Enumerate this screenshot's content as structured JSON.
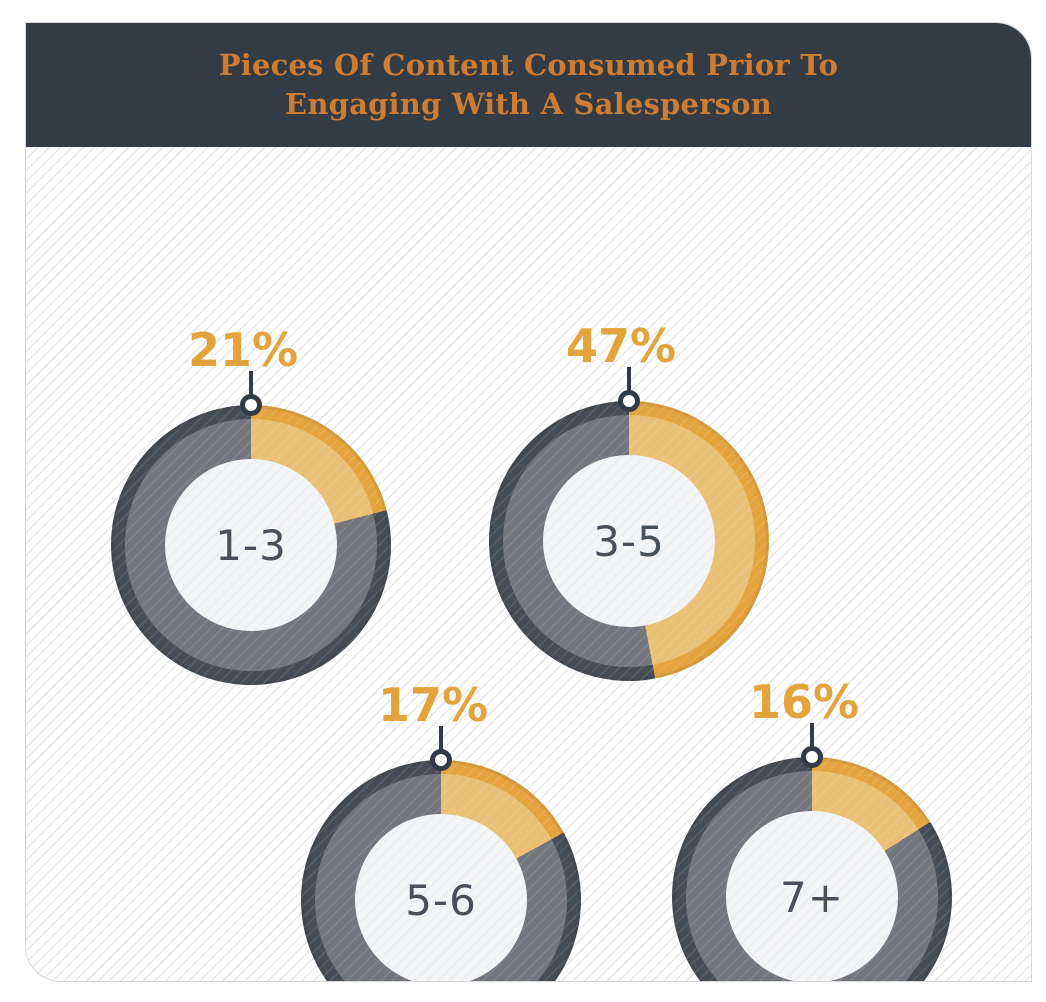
{
  "header": {
    "title_line1": "Pieces Of Content Consumed Prior To",
    "title_line2": "Engaging With A Salesperson"
  },
  "chart_data": {
    "type": "pie",
    "subtype": "donut-multiples",
    "title": "Pieces Of Content Consumed Prior To Engaging With A Salesperson",
    "unit": "%",
    "legend": false,
    "layout": "2x2 staggered donut charts, highlighted slice starts at 12 o'clock clockwise",
    "slices": [
      {
        "category": "1-3",
        "value": 21,
        "value_label": "21%"
      },
      {
        "category": "3-5",
        "value": 47,
        "value_label": "47%"
      },
      {
        "category": "5-6",
        "value": 17,
        "value_label": "17%"
      },
      {
        "category": "7+",
        "value": 16,
        "value_label": "16%"
      }
    ]
  },
  "colors": {
    "header_bg": "#333b45",
    "title_orange": "#cd7c31",
    "accent_orange": "#e3a43e",
    "accent_orange_light": "#eac077",
    "ring_dark": "#474d56",
    "ring_gray": "#74767d",
    "hole_bg": "#f4f5f6",
    "center_label": "#4a505a",
    "marker": "#333b46"
  }
}
